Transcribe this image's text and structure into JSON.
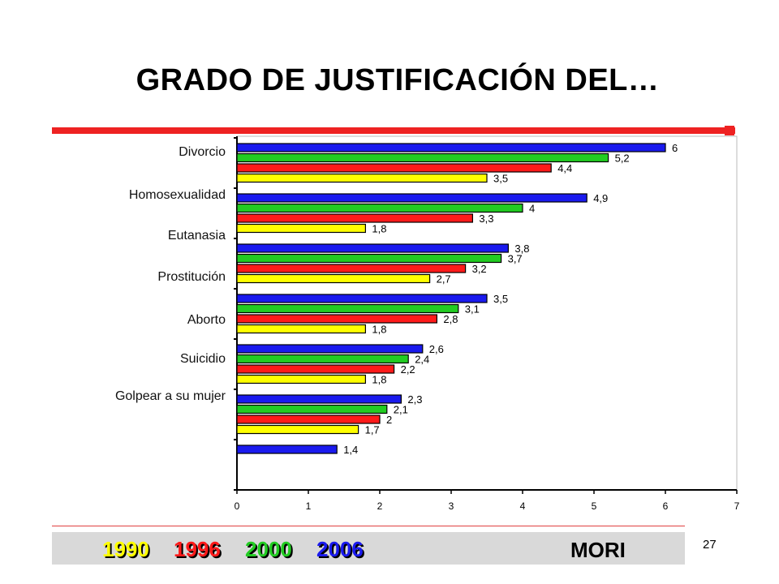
{
  "slide": {
    "title": "GRADO DE JUSTIFICACIÓN DEL…",
    "page_number": "27",
    "source": "MORI"
  },
  "legend": [
    {
      "year": "1990",
      "color": "#ffff00"
    },
    {
      "year": "1996",
      "color": "#ff1a1a"
    },
    {
      "year": "2000",
      "color": "#22cc22"
    },
    {
      "year": "2006",
      "color": "#1a1aee"
    }
  ],
  "chart_data": {
    "type": "bar",
    "orientation": "horizontal",
    "categories": [
      "Divorcio",
      "Homosexualidad",
      "Eutanasia",
      "Prostitución",
      "Aborto",
      "Suicidio",
      "Golpear a su mujer"
    ],
    "xlim": [
      0,
      7
    ],
    "xticks": [
      "0",
      "1",
      "2",
      "3",
      "4",
      "5",
      "6",
      "7"
    ],
    "grid": false,
    "bar_groups": [
      {
        "bars": [
          {
            "v": 6,
            "l": "6",
            "c": "#1a1aee"
          },
          {
            "v": 5.2,
            "l": "5,2",
            "c": "#22cc22"
          },
          {
            "v": 4.4,
            "l": "4,4",
            "c": "#ff1a1a"
          },
          {
            "v": 3.5,
            "l": "3,5",
            "c": "#ffff00"
          }
        ]
      },
      {
        "bars": [
          {
            "v": 4.9,
            "l": "4,9",
            "c": "#1a1aee"
          },
          {
            "v": 4,
            "l": "4",
            "c": "#22cc22"
          },
          {
            "v": 3.3,
            "l": "3,3",
            "c": "#ff1a1a"
          },
          {
            "v": 1.8,
            "l": "1,8",
            "c": "#ffff00"
          }
        ]
      },
      {
        "bars": [
          {
            "v": 3.8,
            "l": "3,8",
            "c": "#1a1aee"
          },
          {
            "v": 3.7,
            "l": "3,7",
            "c": "#22cc22"
          },
          {
            "v": 3.2,
            "l": "3,2",
            "c": "#ff1a1a"
          },
          {
            "v": 2.7,
            "l": "2,7",
            "c": "#ffff00"
          }
        ]
      },
      {
        "bars": [
          {
            "v": 3.5,
            "l": "3,5",
            "c": "#1a1aee"
          },
          {
            "v": 3.1,
            "l": "3,1",
            "c": "#22cc22"
          },
          {
            "v": 2.8,
            "l": "2,8",
            "c": "#ff1a1a"
          },
          {
            "v": 1.8,
            "l": "1,8",
            "c": "#ffff00"
          }
        ]
      },
      {
        "bars": [
          {
            "v": 2.6,
            "l": "2,6",
            "c": "#1a1aee"
          },
          {
            "v": 2.4,
            "l": "2,4",
            "c": "#22cc22"
          },
          {
            "v": 2.2,
            "l": "2,2",
            "c": "#ff1a1a"
          },
          {
            "v": 1.8,
            "l": "1,8",
            "c": "#ffff00"
          }
        ]
      },
      {
        "bars": [
          {
            "v": 2.3,
            "l": "2,3",
            "c": "#1a1aee"
          },
          {
            "v": 2.1,
            "l": "2,1",
            "c": "#22cc22"
          },
          {
            "v": 2,
            "l": "2",
            "c": "#ff1a1a"
          },
          {
            "v": 1.7,
            "l": "1,7",
            "c": "#ffff00"
          }
        ]
      },
      {
        "bars": [
          {
            "v": 1.4,
            "l": "1,4",
            "c": "#1a1aee"
          }
        ]
      }
    ]
  }
}
